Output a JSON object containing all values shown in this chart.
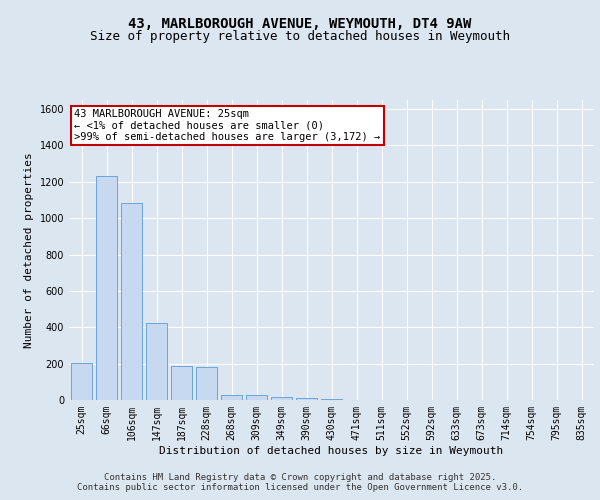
{
  "title_line1": "43, MARLBOROUGH AVENUE, WEYMOUTH, DT4 9AW",
  "title_line2": "Size of property relative to detached houses in Weymouth",
  "xlabel": "Distribution of detached houses by size in Weymouth",
  "ylabel": "Number of detached properties",
  "categories": [
    "25sqm",
    "66sqm",
    "106sqm",
    "147sqm",
    "187sqm",
    "228sqm",
    "268sqm",
    "309sqm",
    "349sqm",
    "390sqm",
    "430sqm",
    "471sqm",
    "511sqm",
    "552sqm",
    "592sqm",
    "633sqm",
    "673sqm",
    "714sqm",
    "754sqm",
    "795sqm",
    "835sqm"
  ],
  "values": [
    202,
    1232,
    1082,
    422,
    185,
    182,
    30,
    25,
    15,
    10,
    5,
    0,
    0,
    0,
    0,
    0,
    0,
    0,
    0,
    0,
    0
  ],
  "bar_color": "#c6d9f0",
  "bar_edgecolor": "#5b9bd5",
  "annotation_box_text": "43 MARLBOROUGH AVENUE: 25sqm\n← <1% of detached houses are smaller (0)\n>99% of semi-detached houses are larger (3,172) →",
  "annotation_box_color": "#ffffff",
  "annotation_box_edgecolor": "#c00000",
  "ylim": [
    0,
    1650
  ],
  "yticks": [
    0,
    200,
    400,
    600,
    800,
    1000,
    1200,
    1400,
    1600
  ],
  "background_color": "#dce6f1",
  "plot_background_color": "#dce6f1",
  "footer_line1": "Contains HM Land Registry data © Crown copyright and database right 2025.",
  "footer_line2": "Contains public sector information licensed under the Open Government Licence v3.0.",
  "title_fontsize": 10,
  "subtitle_fontsize": 9,
  "axis_label_fontsize": 8,
  "tick_fontsize": 7,
  "annotation_fontsize": 7.5,
  "footer_fontsize": 6.5
}
